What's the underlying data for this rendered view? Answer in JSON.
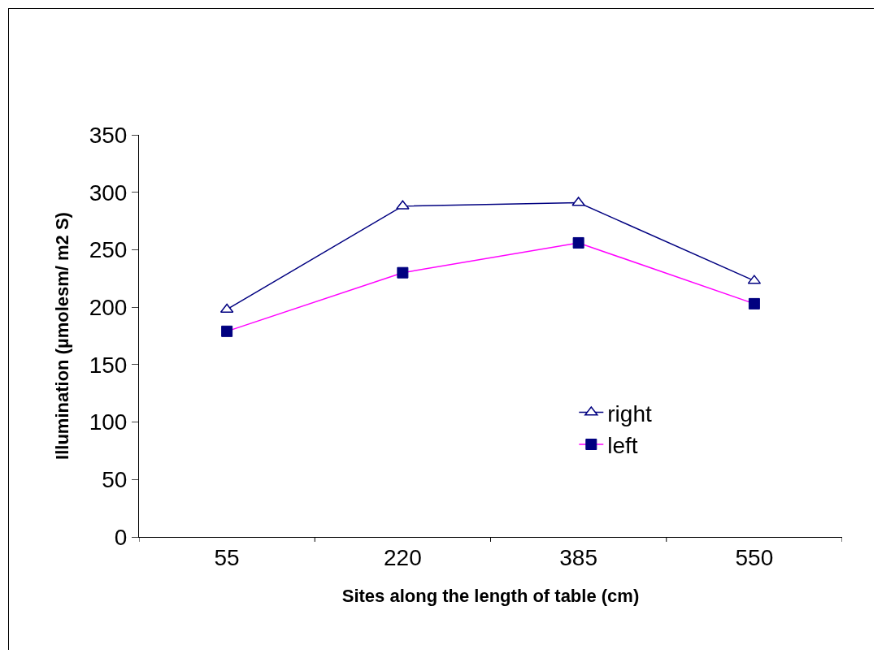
{
  "chart_data": {
    "type": "line",
    "xlabel": "Sites along the length of table (cm)",
    "ylabel": "Illumination (µmolesm/ m2 S)",
    "categories": [
      "55",
      "220",
      "385",
      "550"
    ],
    "ylim": [
      0,
      350
    ],
    "yticks": [
      0,
      50,
      100,
      150,
      200,
      250,
      300,
      350
    ],
    "grid": false,
    "legend": "bottom right",
    "series": [
      {
        "name": "right",
        "color": "#000080",
        "marker": "triangle",
        "values": [
          198,
          288,
          291,
          223
        ]
      },
      {
        "name": "left",
        "color": "#ff00ff",
        "marker": "square",
        "values": [
          179,
          230,
          256,
          203
        ]
      }
    ]
  }
}
